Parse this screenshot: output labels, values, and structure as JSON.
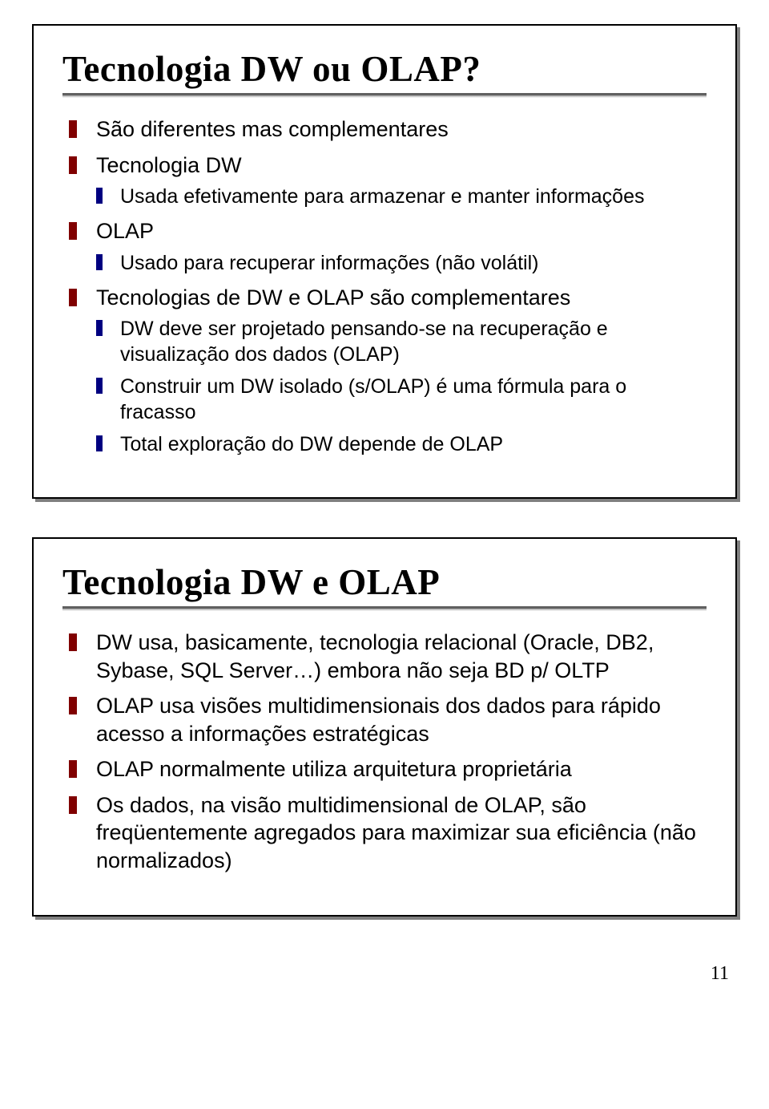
{
  "colors": {
    "bullet_lvl1": "#800000",
    "bullet_lvl2": "#000080",
    "border": "#000000",
    "shadow": "#808080",
    "rule": "#606060",
    "background": "#ffffff"
  },
  "typography": {
    "title_font": "Times New Roman",
    "title_size_pt": 34,
    "title_weight": "bold",
    "body_font": "Arial",
    "lvl1_size_pt": 20,
    "lvl2_size_pt": 19
  },
  "slide1": {
    "title": "Tecnologia DW ou OLAP?",
    "items": [
      {
        "text": "São diferentes mas complementares"
      },
      {
        "text": "Tecnologia DW",
        "children": [
          "Usada efetivamente para armazenar e manter informações"
        ]
      },
      {
        "text": "OLAP",
        "children": [
          "Usado para recuperar informações (não volátil)"
        ]
      },
      {
        "text": "Tecnologias de DW e OLAP são complementares",
        "children": [
          "DW deve ser projetado pensando-se na recuperação e visualização dos dados (OLAP)",
          "Construir um DW isolado (s/OLAP) é uma fórmula para o fracasso",
          "Total exploração do DW depende de OLAP"
        ]
      }
    ]
  },
  "slide2": {
    "title": "Tecnologia DW e OLAP",
    "items": [
      {
        "text": "DW usa, basicamente, tecnologia relacional (Oracle, DB2, Sybase, SQL Server…) embora não seja BD p/ OLTP"
      },
      {
        "text": "OLAP usa visões multidimensionais dos dados para rápido acesso a informações estratégicas"
      },
      {
        "text": "OLAP normalmente utiliza arquitetura proprietária"
      },
      {
        "text": "Os dados, na visão multidimensional  de OLAP, são freqüentemente agregados para maximizar sua eficiência (não normalizados)"
      }
    ]
  },
  "page_number": "11"
}
